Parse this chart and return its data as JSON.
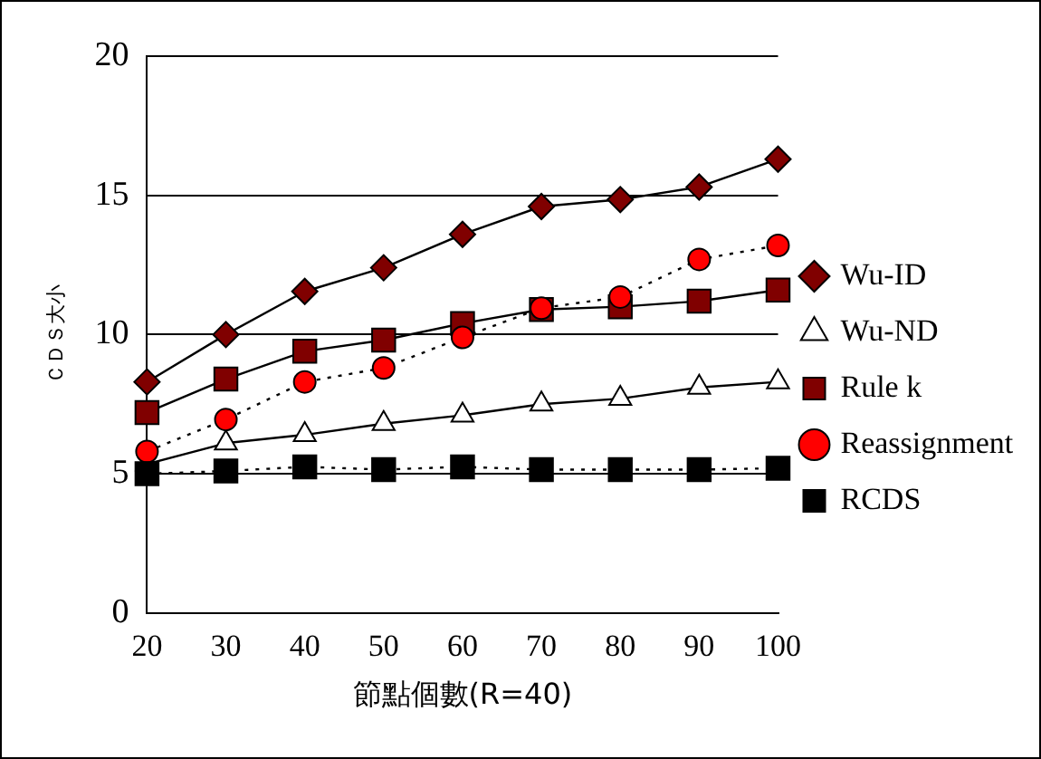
{
  "chart_data": {
    "type": "line",
    "xlabel": "節點個數(R=40)",
    "ylabel": "ＣＤＳ大小",
    "categories": [
      "20",
      "30",
      "40",
      "50",
      "60",
      "70",
      "80",
      "90",
      "100"
    ],
    "series": [
      {
        "name": "Wu-ID",
        "color": "#800000",
        "marker": "diamond",
        "line_style": "solid",
        "values": [
          8.3,
          10.0,
          11.55,
          12.4,
          13.6,
          14.6,
          14.85,
          15.3,
          16.3
        ]
      },
      {
        "name": "Wu-ND",
        "color": "#ffffff",
        "marker": "triangle",
        "line_style": "solid",
        "values": [
          5.35,
          6.1,
          6.4,
          6.8,
          7.1,
          7.5,
          7.7,
          8.1,
          8.3
        ]
      },
      {
        "name": "Rule k",
        "color": "#800000",
        "marker": "square",
        "line_style": "solid",
        "values": [
          7.2,
          8.4,
          9.4,
          9.8,
          10.4,
          10.9,
          11.0,
          11.2,
          11.6
        ]
      },
      {
        "name": "Reassignment",
        "color": "#ff0000",
        "marker": "circle",
        "line_style": "dotted",
        "values": [
          5.8,
          6.95,
          8.3,
          8.8,
          9.9,
          10.95,
          11.35,
          12.7,
          13.2
        ]
      },
      {
        "name": "RCDS",
        "color": "#000000",
        "marker": "square",
        "line_style": "dotted",
        "values": [
          5.0,
          5.1,
          5.25,
          5.15,
          5.25,
          5.15,
          5.15,
          5.15,
          5.2
        ]
      }
    ],
    "ylim": [
      0,
      20
    ],
    "yticks": [
      0,
      5,
      10,
      15,
      20
    ],
    "grid": "y",
    "legend": "right"
  }
}
